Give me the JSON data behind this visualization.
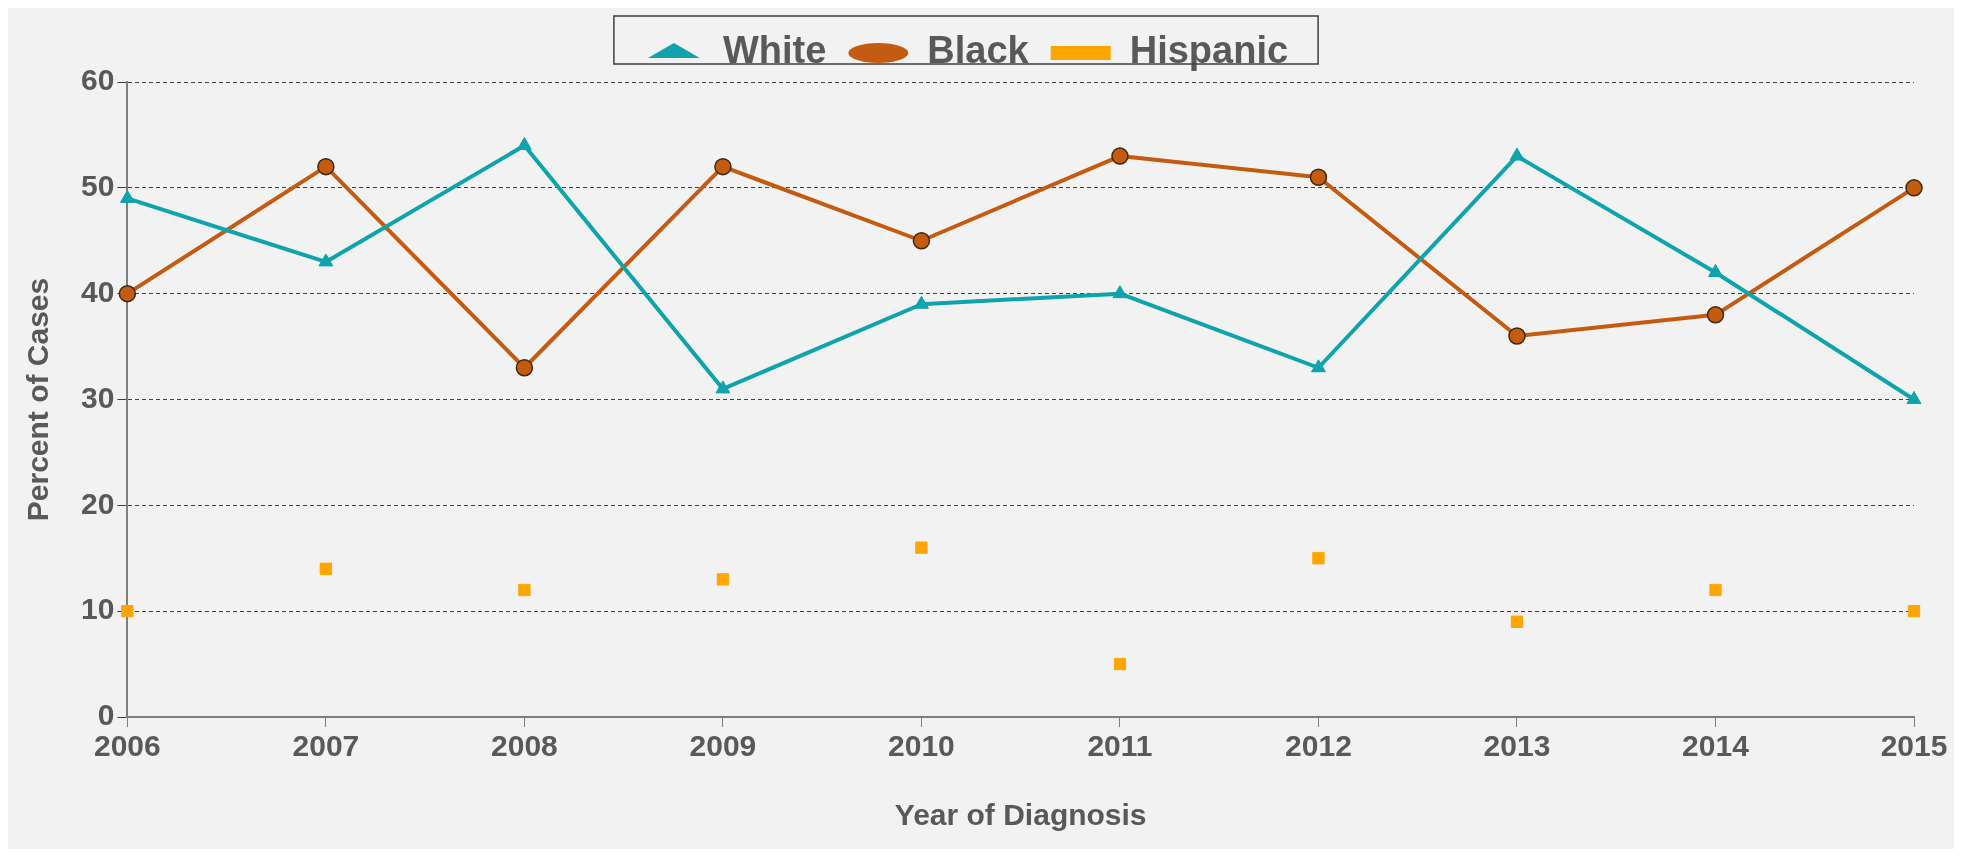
{
  "chart_data": {
    "type": "line",
    "xlabel": "Year of Diagnosis",
    "ylabel": "Percent of Cases",
    "categories": [
      "2006",
      "2007",
      "2008",
      "2009",
      "2010",
      "2011",
      "2012",
      "2013",
      "2014",
      "2015"
    ],
    "series": [
      {
        "name": "White",
        "color": "#0fa3ad",
        "marker": "triangle",
        "values": [
          49,
          43,
          54,
          31,
          39,
          40,
          33,
          53,
          42,
          30
        ]
      },
      {
        "name": "Black",
        "color": "#c55a11",
        "marker": "circle",
        "values": [
          40,
          52,
          33,
          52,
          45,
          53,
          51,
          36,
          38,
          50
        ]
      },
      {
        "name": "Hispanic",
        "type": "scatter",
        "color": "#ffa500",
        "marker": "square",
        "values": [
          10,
          14,
          12,
          13,
          16,
          5,
          15,
          9,
          12,
          10
        ]
      }
    ],
    "ylim": [
      0,
      60
    ],
    "yticks": [
      0,
      10,
      20,
      30,
      40,
      50,
      60
    ],
    "grid": "y",
    "legend": "top"
  }
}
